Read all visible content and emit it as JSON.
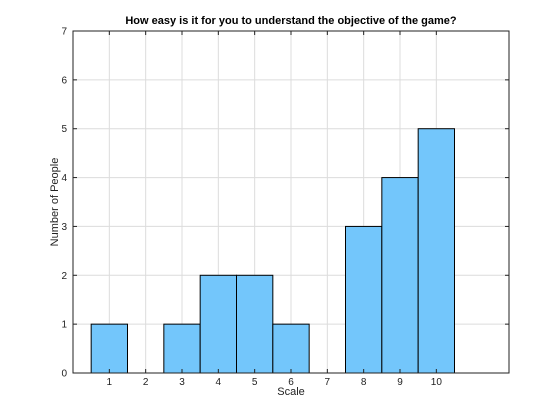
{
  "chart_data": {
    "type": "bar",
    "title": "How easy is it for you to understand the objective of the game?",
    "xlabel": "Scale",
    "ylabel": "Number of People",
    "categories": [
      "1",
      "2",
      "3",
      "4",
      "5",
      "6",
      "7",
      "8",
      "9",
      "10"
    ],
    "x": [
      1,
      2,
      3,
      4,
      5,
      6,
      7,
      8,
      9,
      10
    ],
    "values": [
      1,
      0,
      1,
      2,
      2,
      1,
      0,
      3,
      4,
      5
    ],
    "xlim": [
      0,
      12
    ],
    "ylim": [
      0,
      7
    ],
    "yticks": [
      0,
      1,
      2,
      3,
      4,
      5,
      6,
      7
    ],
    "grid": true,
    "bar_color": "#73c6fb"
  }
}
